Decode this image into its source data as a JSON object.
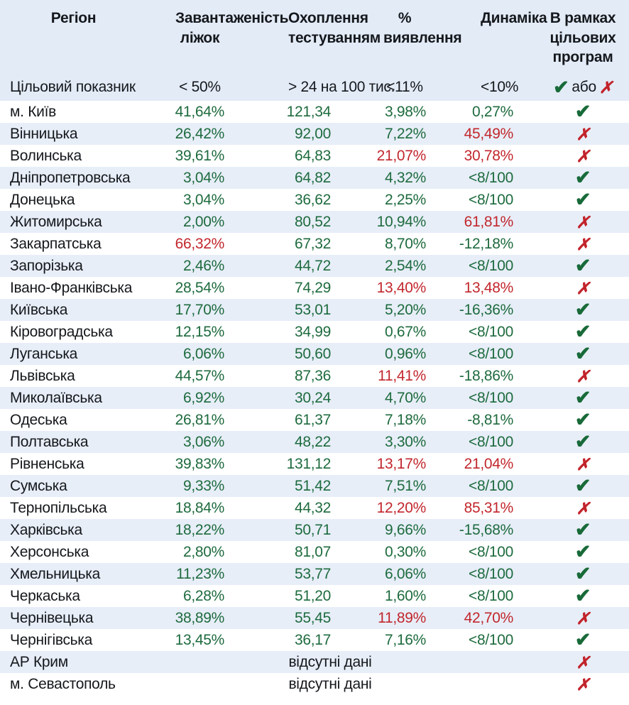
{
  "colors": {
    "green": "#1e6b3e",
    "red": "#c2272d",
    "header_bg": "#e3ebf7",
    "row_stripe": "#e7eef8",
    "text": "#15181c"
  },
  "icons": {
    "check": "✔",
    "cross": "✗"
  },
  "chart_data": {
    "type": "table",
    "columns": [
      "Регіон",
      "Завантаженість ліжок",
      "Охоплення тестуванням",
      "% виявлення",
      "Динаміка",
      "В рамках цільових програм"
    ],
    "target_row": {
      "label": "Цільовий показник",
      "beds": "< 50%",
      "testing": "> 24 на 100 тис.",
      "detection": "<11%",
      "dynamics": "<10%",
      "or_label": "або"
    },
    "no_data_label": "відсутні дані",
    "rows": [
      {
        "region": "м. Київ",
        "beds": "41,64%",
        "beds_c": "green",
        "testing": "121,34",
        "testing_c": "green",
        "detection": "3,98%",
        "detection_c": "green",
        "dynamics": "0,27%",
        "dynamics_c": "green",
        "status": "pass"
      },
      {
        "region": "Вінницька",
        "beds": "26,42%",
        "beds_c": "green",
        "testing": "92,00",
        "testing_c": "green",
        "detection": "7,22%",
        "detection_c": "green",
        "dynamics": "45,49%",
        "dynamics_c": "red",
        "status": "fail"
      },
      {
        "region": "Волинська",
        "beds": "39,61%",
        "beds_c": "green",
        "testing": "64,83",
        "testing_c": "green",
        "detection": "21,07%",
        "detection_c": "red",
        "dynamics": "30,78%",
        "dynamics_c": "red",
        "status": "fail"
      },
      {
        "region": "Дніпропетровська",
        "beds": "3,04%",
        "beds_c": "green",
        "testing": "64,82",
        "testing_c": "green",
        "detection": "4,32%",
        "detection_c": "green",
        "dynamics": "<8/100",
        "dynamics_c": "green",
        "status": "pass"
      },
      {
        "region": "Донецька",
        "beds": "3,04%",
        "beds_c": "green",
        "testing": "36,62",
        "testing_c": "green",
        "detection": "2,25%",
        "detection_c": "green",
        "dynamics": "<8/100",
        "dynamics_c": "green",
        "status": "pass"
      },
      {
        "region": "Житомирська",
        "beds": "2,00%",
        "beds_c": "green",
        "testing": "80,52",
        "testing_c": "green",
        "detection": "10,94%",
        "detection_c": "green",
        "dynamics": "61,81%",
        "dynamics_c": "red",
        "status": "fail"
      },
      {
        "region": "Закарпатська",
        "beds": "66,32%",
        "beds_c": "red",
        "testing": "67,32",
        "testing_c": "green",
        "detection": "8,70%",
        "detection_c": "green",
        "dynamics": "-12,18%",
        "dynamics_c": "green",
        "status": "fail"
      },
      {
        "region": "Запорізька",
        "beds": "2,46%",
        "beds_c": "green",
        "testing": "44,72",
        "testing_c": "green",
        "detection": "2,54%",
        "detection_c": "green",
        "dynamics": "<8/100",
        "dynamics_c": "green",
        "status": "pass"
      },
      {
        "region": "Івано-Франківська",
        "beds": "28,54%",
        "beds_c": "green",
        "testing": "74,29",
        "testing_c": "green",
        "detection": "13,40%",
        "detection_c": "red",
        "dynamics": "13,48%",
        "dynamics_c": "red",
        "status": "fail"
      },
      {
        "region": "Київська",
        "beds": "17,70%",
        "beds_c": "green",
        "testing": "53,01",
        "testing_c": "green",
        "detection": "5,20%",
        "detection_c": "green",
        "dynamics": "-16,36%",
        "dynamics_c": "green",
        "status": "pass"
      },
      {
        "region": "Кіровоградська",
        "beds": "12,15%",
        "beds_c": "green",
        "testing": "34,99",
        "testing_c": "green",
        "detection": "0,67%",
        "detection_c": "green",
        "dynamics": "<8/100",
        "dynamics_c": "green",
        "status": "pass"
      },
      {
        "region": "Луганська",
        "beds": "6,06%",
        "beds_c": "green",
        "testing": "50,60",
        "testing_c": "green",
        "detection": "0,96%",
        "detection_c": "green",
        "dynamics": "<8/100",
        "dynamics_c": "green",
        "status": "pass"
      },
      {
        "region": "Львівська",
        "beds": "44,57%",
        "beds_c": "green",
        "testing": "87,36",
        "testing_c": "green",
        "detection": "11,41%",
        "detection_c": "red",
        "dynamics": "-18,86%",
        "dynamics_c": "green",
        "status": "fail"
      },
      {
        "region": "Миколаївська",
        "beds": "6,92%",
        "beds_c": "green",
        "testing": "30,24",
        "testing_c": "green",
        "detection": "4,70%",
        "detection_c": "green",
        "dynamics": "<8/100",
        "dynamics_c": "green",
        "status": "pass"
      },
      {
        "region": "Одеська",
        "beds": "26,81%",
        "beds_c": "green",
        "testing": "61,37",
        "testing_c": "green",
        "detection": "7,18%",
        "detection_c": "green",
        "dynamics": "-8,81%",
        "dynamics_c": "green",
        "status": "pass"
      },
      {
        "region": "Полтавська",
        "beds": "3,06%",
        "beds_c": "green",
        "testing": "48,22",
        "testing_c": "green",
        "detection": "3,30%",
        "detection_c": "green",
        "dynamics": "<8/100",
        "dynamics_c": "green",
        "status": "pass"
      },
      {
        "region": "Рівненська",
        "beds": "39,83%",
        "beds_c": "green",
        "testing": "131,12",
        "testing_c": "green",
        "detection": "13,17%",
        "detection_c": "red",
        "dynamics": "21,04%",
        "dynamics_c": "red",
        "status": "fail"
      },
      {
        "region": "Сумська",
        "beds": "9,33%",
        "beds_c": "green",
        "testing": "51,42",
        "testing_c": "green",
        "detection": "7,51%",
        "detection_c": "green",
        "dynamics": "<8/100",
        "dynamics_c": "green",
        "status": "pass"
      },
      {
        "region": "Тернопільська",
        "beds": "18,84%",
        "beds_c": "green",
        "testing": "44,32",
        "testing_c": "green",
        "detection": "12,20%",
        "detection_c": "red",
        "dynamics": "85,31%",
        "dynamics_c": "red",
        "status": "fail"
      },
      {
        "region": "Харківська",
        "beds": "18,22%",
        "beds_c": "green",
        "testing": "50,71",
        "testing_c": "green",
        "detection": "9,66%",
        "detection_c": "green",
        "dynamics": "-15,68%",
        "dynamics_c": "green",
        "status": "pass"
      },
      {
        "region": "Херсонська",
        "beds": "2,80%",
        "beds_c": "green",
        "testing": "81,07",
        "testing_c": "green",
        "detection": "0,30%",
        "detection_c": "green",
        "dynamics": "<8/100",
        "dynamics_c": "green",
        "status": "pass"
      },
      {
        "region": "Хмельницька",
        "beds": "11,23%",
        "beds_c": "green",
        "testing": "53,77",
        "testing_c": "green",
        "detection": "6,06%",
        "detection_c": "green",
        "dynamics": "<8/100",
        "dynamics_c": "green",
        "status": "pass"
      },
      {
        "region": "Черкаська",
        "beds": "6,28%",
        "beds_c": "green",
        "testing": "51,20",
        "testing_c": "green",
        "detection": "1,60%",
        "detection_c": "green",
        "dynamics": "<8/100",
        "dynamics_c": "green",
        "status": "pass"
      },
      {
        "region": "Чернівецька",
        "beds": "38,89%",
        "beds_c": "green",
        "testing": "55,45",
        "testing_c": "green",
        "detection": "11,89%",
        "detection_c": "red",
        "dynamics": "42,70%",
        "dynamics_c": "red",
        "status": "fail"
      },
      {
        "region": "Чернігівська",
        "beds": "13,45%",
        "beds_c": "green",
        "testing": "36,17",
        "testing_c": "green",
        "detection": "7,16%",
        "detection_c": "green",
        "dynamics": "<8/100",
        "dynamics_c": "green",
        "status": "pass"
      },
      {
        "region": "АР Крим",
        "no_data": true,
        "status": "fail"
      },
      {
        "region": "м. Севастополь",
        "no_data": true,
        "status": "fail"
      }
    ]
  }
}
